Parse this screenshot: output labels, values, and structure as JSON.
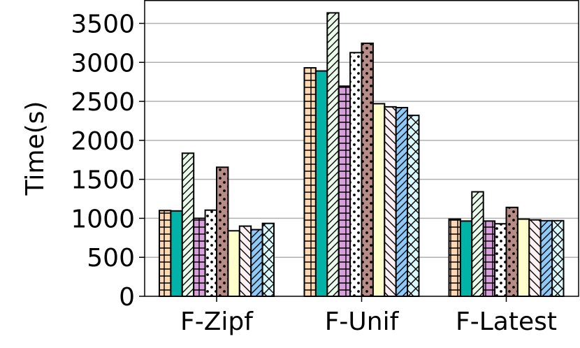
{
  "chart_data": {
    "type": "bar",
    "title": "",
    "xlabel": "",
    "ylabel": "Time(s)",
    "ylim": [
      0,
      3800
    ],
    "yticks": [
      0,
      500,
      1000,
      1500,
      2000,
      2500,
      3000,
      3500
    ],
    "ytick_labels": [
      "0",
      "500",
      "1000",
      "1500",
      "2000",
      "2500",
      "3000",
      "3500"
    ],
    "grid": "horizontal",
    "legend": "none",
    "categories": [
      "F-Zipf",
      "F-Unif",
      "F-Latest"
    ],
    "series": [
      {
        "values": [
          1100,
          2930,
          990
        ],
        "color": "#ffd9b3",
        "pattern": "grid"
      },
      {
        "values": [
          1095,
          2890,
          965
        ],
        "color": "#00b3a6",
        "pattern": "solid"
      },
      {
        "values": [
          1835,
          3635,
          1340
        ],
        "color": "#eafaea",
        "pattern": "diag-fwd"
      },
      {
        "values": [
          1000,
          2695,
          965
        ],
        "color": "#d9a1dc",
        "pattern": "grid"
      },
      {
        "values": [
          1105,
          3125,
          930
        ],
        "color": "#ffffff",
        "pattern": "dots"
      },
      {
        "values": [
          1655,
          3245,
          1140
        ],
        "color": "#b88c86",
        "pattern": "dots"
      },
      {
        "values": [
          840,
          2470,
          990
        ],
        "color": "#ffffcc",
        "pattern": "solid"
      },
      {
        "values": [
          900,
          2430,
          980
        ],
        "color": "#fff0f3",
        "pattern": "diag-back"
      },
      {
        "values": [
          855,
          2420,
          970
        ],
        "color": "#8ec9f7",
        "pattern": "diag-fwd"
      },
      {
        "values": [
          935,
          2320,
          970
        ],
        "color": "#d8faff",
        "pattern": "cross"
      }
    ]
  }
}
